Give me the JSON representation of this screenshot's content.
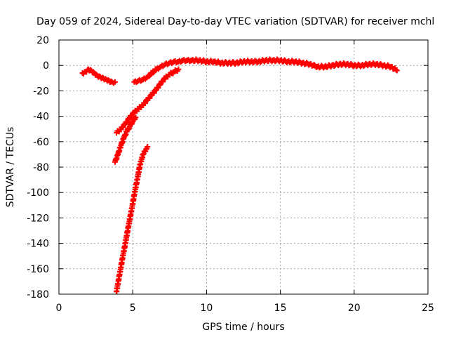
{
  "chart_data": {
    "type": "scatter",
    "title": "Day 059 of 2024, Sidereal Day-to-day VTEC variation (SDTVAR) for receiver mchl",
    "xlabel": "GPS time / hours",
    "ylabel": "SDTVAR / TECUs",
    "xlim": [
      0,
      25
    ],
    "ylim": [
      -180,
      20
    ],
    "x_ticks": [
      0,
      5,
      10,
      15,
      20,
      25
    ],
    "x_tick_labels": [
      "0",
      "5",
      "10",
      "15",
      "20",
      "25"
    ],
    "y_ticks": [
      20,
      0,
      -20,
      -40,
      -60,
      -80,
      -100,
      -120,
      -140,
      -160,
      -180
    ],
    "y_tick_labels": [
      "20",
      "0",
      "-20",
      "-40",
      "-60",
      "-80",
      "-100",
      "-120",
      "-140",
      "-160",
      "-180"
    ],
    "grid": true,
    "marker": "plus",
    "series": [
      {
        "color": "#ff0000",
        "x": [
          1.6,
          1.8,
          2.0,
          2.2,
          2.4,
          2.6,
          2.8,
          3.0,
          3.2,
          3.4,
          3.6,
          3.8
        ],
        "y": [
          -6,
          -5,
          -3,
          -4,
          -6,
          -8,
          -9,
          -10,
          -11,
          -12,
          -13,
          -13
        ]
      },
      {
        "color": "#ff0000",
        "x": [
          3.9,
          4.1,
          4.3,
          4.5,
          4.7,
          4.9,
          5.1,
          5.3,
          5.5,
          5.7,
          5.9,
          6.0
        ],
        "y": [
          -178,
          -165,
          -152,
          -140,
          -127,
          -115,
          -102,
          -90,
          -78,
          -70,
          -66,
          -64
        ]
      },
      {
        "color": "#ff0000",
        "x": [
          3.8,
          4.0,
          4.2,
          4.4,
          4.6,
          4.8,
          5.0,
          5.2
        ],
        "y": [
          -76,
          -70,
          -63,
          -57,
          -52,
          -48,
          -44,
          -41
        ]
      },
      {
        "color": "#ff0000",
        "x": [
          3.9,
          4.2,
          4.5,
          4.8,
          5.1,
          5.4,
          5.7,
          6.0,
          6.3,
          6.6,
          6.9,
          7.2,
          7.5,
          7.8,
          8.1
        ],
        "y": [
          -53,
          -50,
          -46,
          -41,
          -37,
          -34,
          -31,
          -27,
          -23,
          -19,
          -14,
          -10,
          -7,
          -5,
          -3
        ]
      },
      {
        "color": "#ff0000",
        "x": [
          5.1,
          5.4,
          5.7,
          6.0,
          6.3,
          6.6,
          6.9,
          7.2,
          7.5,
          7.8,
          8.1,
          8.4,
          8.7,
          9.0,
          9.5,
          10.0,
          10.5,
          11.0,
          11.5,
          12.0,
          12.5,
          13.0,
          13.5,
          14.0,
          14.5,
          15.0,
          15.5,
          16.0,
          16.5,
          17.0,
          17.5,
          18.0,
          18.5,
          19.0,
          19.5,
          20.0,
          20.5,
          21.0,
          21.5,
          22.0,
          22.5,
          22.9
        ],
        "y": [
          -13,
          -12,
          -11,
          -9,
          -6,
          -3,
          -1,
          1,
          2,
          3,
          3,
          4,
          4,
          4,
          4,
          3,
          3,
          2,
          2,
          2,
          3,
          3,
          3,
          4,
          4,
          4,
          3,
          3,
          2,
          1,
          -1,
          -1,
          0,
          1,
          1,
          0,
          0,
          1,
          1,
          0,
          -1,
          -4
        ]
      }
    ]
  }
}
